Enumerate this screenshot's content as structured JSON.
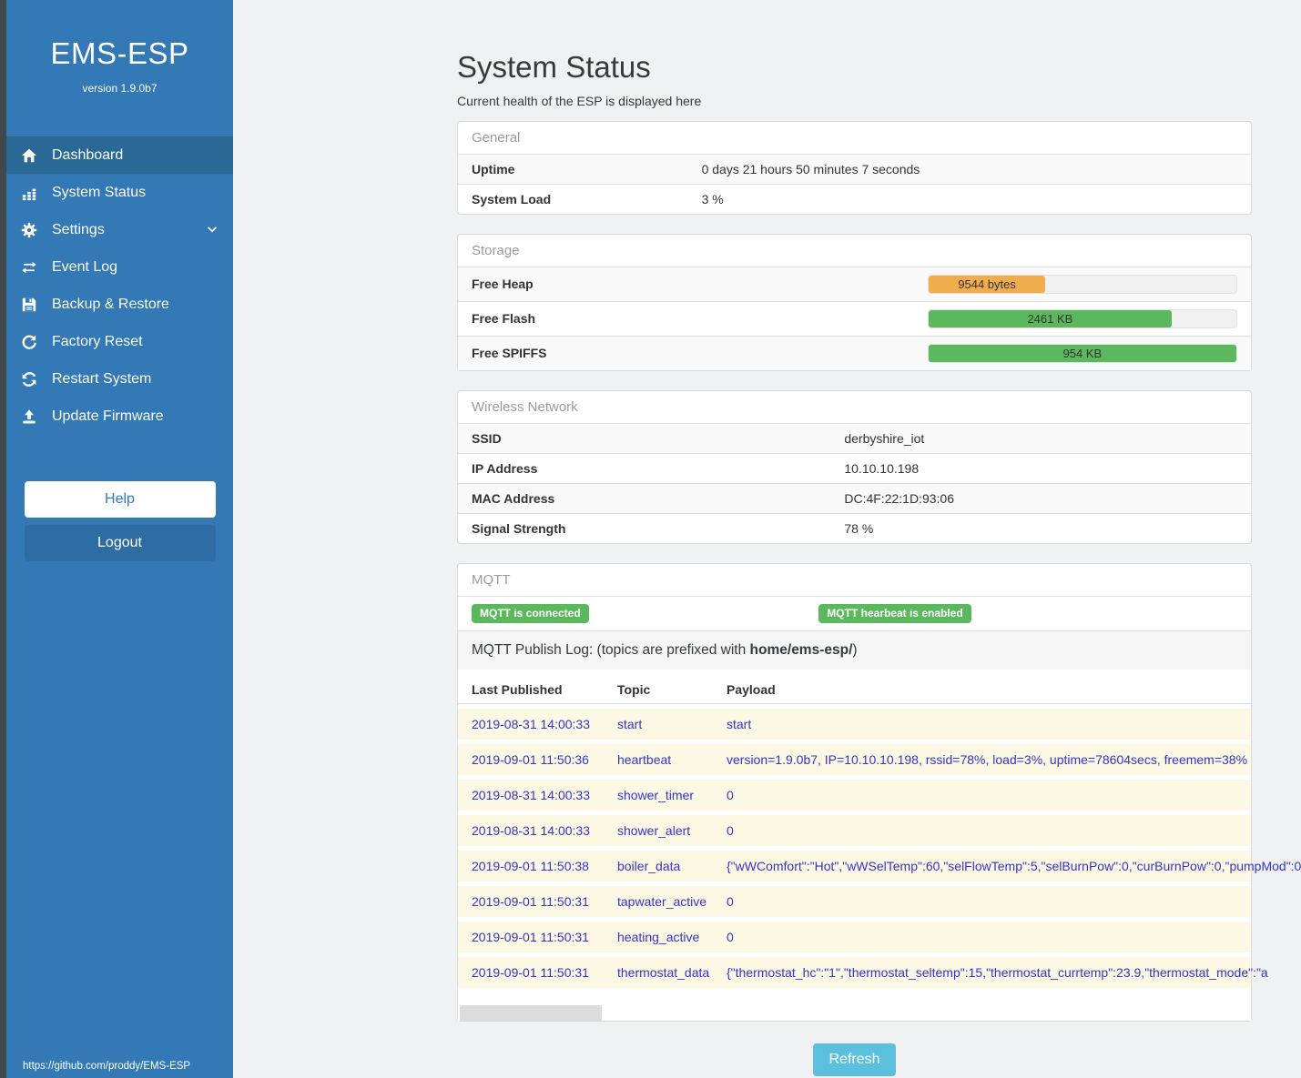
{
  "sidebar": {
    "brand": "EMS-ESP",
    "version": "version 1.9.0b7",
    "items": [
      {
        "label": "Dashboard",
        "icon": "home-icon",
        "active": true,
        "has_submenu": false
      },
      {
        "label": "System Status",
        "icon": "chart-icon",
        "active": false,
        "has_submenu": false
      },
      {
        "label": "Settings",
        "icon": "gear-icon",
        "active": false,
        "has_submenu": true
      },
      {
        "label": "Event Log",
        "icon": "exchange-icon",
        "active": false,
        "has_submenu": false
      },
      {
        "label": "Backup & Restore",
        "icon": "save-icon",
        "active": false,
        "has_submenu": false
      },
      {
        "label": "Factory Reset",
        "icon": "undo-icon",
        "active": false,
        "has_submenu": false
      },
      {
        "label": "Restart System",
        "icon": "refresh-icon",
        "active": false,
        "has_submenu": false
      },
      {
        "label": "Update Firmware",
        "icon": "upload-icon",
        "active": false,
        "has_submenu": false
      }
    ],
    "help_label": "Help",
    "logout_label": "Logout",
    "footer_url": "https://github.com/proddy/EMS-ESP"
  },
  "page": {
    "title": "System Status",
    "subtitle": "Current health of the ESP is displayed here"
  },
  "general": {
    "header": "General",
    "rows": [
      [
        "Uptime",
        "0 days 21 hours 50 minutes 7 seconds"
      ],
      [
        "System Load",
        "3 %"
      ]
    ]
  },
  "storage": {
    "header": "Storage",
    "rows": [
      {
        "label": "Free Heap",
        "value": "9544 bytes",
        "percent": 38,
        "color": "#f0ad4e"
      },
      {
        "label": "Free Flash",
        "value": "2461 KB",
        "percent": 79,
        "color": "#5cb85c"
      },
      {
        "label": "Free SPIFFS",
        "value": "954 KB",
        "percent": 100,
        "color": "#5cb85c"
      }
    ]
  },
  "wireless": {
    "header": "Wireless Network",
    "rows": [
      [
        "SSID",
        "derbyshire_iot"
      ],
      [
        "IP Address",
        "10.10.10.198"
      ],
      [
        "MAC Address",
        "DC:4F:22:1D:93:06"
      ],
      [
        "Signal Strength",
        "78 %"
      ]
    ]
  },
  "mqtt": {
    "header": "MQTT",
    "badges": [
      "MQTT is connected",
      "MQTT hearbeat is enabled"
    ],
    "log_title": {
      "prefix": "MQTT Publish Log: (topics are prefixed with ",
      "bold": "home/ems-esp/",
      "suffix": ")"
    },
    "table": {
      "headers": [
        "Last Published",
        "Topic",
        "Payload"
      ],
      "rows": [
        [
          "2019-08-31 14:00:33",
          "start",
          "start"
        ],
        [
          "2019-09-01 11:50:36",
          "heartbeat",
          "version=1.9.0b7, IP=10.10.10.198, rssid=78%, load=3%, uptime=78604secs, freemem=38%"
        ],
        [
          "2019-08-31 14:00:33",
          "shower_timer",
          "0"
        ],
        [
          "2019-08-31 14:00:33",
          "shower_alert",
          "0"
        ],
        [
          "2019-09-01 11:50:38",
          "boiler_data",
          "{\"wWComfort\":\"Hot\",\"wWSelTemp\":60,\"selFlowTemp\":5,\"selBurnPow\":0,\"curBurnPow\":0,\"pumpMod\":0"
        ],
        [
          "2019-09-01 11:50:31",
          "tapwater_active",
          "0"
        ],
        [
          "2019-09-01 11:50:31",
          "heating_active",
          "0"
        ],
        [
          "2019-09-01 11:50:31",
          "thermostat_data",
          "{\"thermostat_hc\":\"1\",\"thermostat_seltemp\":15,\"thermostat_currtemp\":23.9,\"thermostat_mode\":\"a"
        ]
      ]
    }
  },
  "refresh_label": "Refresh",
  "colors": {
    "sidebar": "#3379b5",
    "sidebar_active": "#2a6896",
    "success_green": "#5cb85c",
    "warning_orange": "#f0ad4e",
    "info_blue": "#5bc0de",
    "log_text_blue": "#3434cd",
    "log_row_cream": "#fcf8e3"
  }
}
